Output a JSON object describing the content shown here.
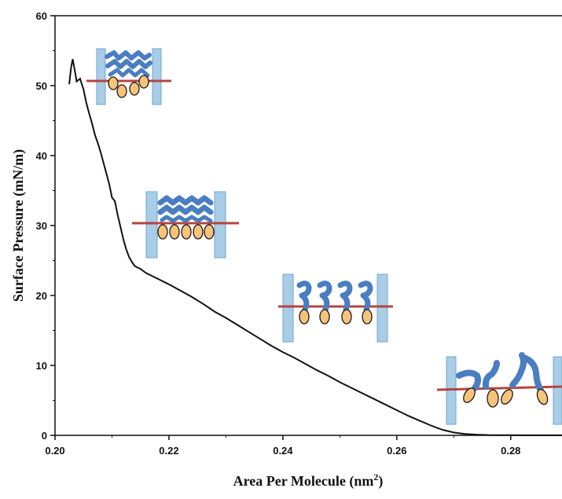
{
  "chart_data": {
    "type": "line",
    "title": "",
    "xlabel": "Area Per Molecule (nm",
    "xlabel_superscript": "2",
    "xlabel_suffix": ")",
    "ylabel": "Surface Pressure (mN/m)",
    "xlim": [
      0.2,
      0.289
    ],
    "ylim": [
      0,
      60
    ],
    "x_ticks": [
      0.2,
      0.22,
      0.24,
      0.26,
      0.28
    ],
    "x_tick_labels": [
      "0.20",
      "0.22",
      "0.24",
      "0.26",
      "0.28"
    ],
    "y_ticks": [
      0,
      10,
      20,
      30,
      40,
      50,
      60
    ],
    "y_tick_labels": [
      "0",
      "10",
      "20",
      "30",
      "40",
      "50",
      "60"
    ],
    "grid": false,
    "legend": "none",
    "series": [
      {
        "x": [
          0.2025,
          0.2028,
          0.2031,
          0.2035,
          0.2038,
          0.2041,
          0.2044,
          0.2047,
          0.205,
          0.2055,
          0.206,
          0.2065,
          0.207,
          0.2075,
          0.208,
          0.2085,
          0.209,
          0.2095,
          0.21,
          0.2105,
          0.211,
          0.2115,
          0.212,
          0.2125,
          0.213,
          0.2135,
          0.214,
          0.215,
          0.216,
          0.218,
          0.22,
          0.222,
          0.224,
          0.226,
          0.228,
          0.23,
          0.232,
          0.234,
          0.236,
          0.238,
          0.24,
          0.242,
          0.244,
          0.246,
          0.248,
          0.25,
          0.252,
          0.254,
          0.256,
          0.258,
          0.26,
          0.262,
          0.264,
          0.266,
          0.268,
          0.27,
          0.272,
          0.274,
          0.276,
          0.278,
          0.28,
          0.282,
          0.284,
          0.286,
          0.288,
          0.289
        ],
        "y": [
          50.2,
          52.5,
          53.8,
          52.0,
          50.6,
          50.8,
          51.0,
          50.2,
          49.5,
          47.5,
          46.0,
          44.6,
          43.0,
          41.8,
          40.5,
          39.0,
          37.5,
          36.0,
          34.0,
          33.5,
          31.5,
          29.8,
          28.0,
          26.6,
          25.5,
          24.8,
          24.2,
          23.8,
          23.2,
          22.4,
          21.6,
          20.7,
          19.8,
          18.8,
          17.7,
          16.8,
          15.8,
          14.8,
          13.8,
          12.8,
          11.9,
          11.1,
          10.2,
          9.3,
          8.5,
          7.6,
          6.8,
          6.0,
          5.2,
          4.4,
          3.6,
          2.8,
          2.1,
          1.4,
          0.8,
          0.4,
          0.2,
          0.1,
          0.05,
          0.03,
          0.02,
          0.01,
          0.01,
          0.01,
          0.01,
          0.01
        ]
      }
    ]
  },
  "colors": {
    "line": "#111111",
    "barrier_fill": "#a9cde6",
    "barrier_stroke": "#6fa6cf",
    "water_line": "#b5453f",
    "tail": "#4a7ec0",
    "head_fill": "#f7c27a",
    "head_stroke": "#1a1a1a"
  }
}
